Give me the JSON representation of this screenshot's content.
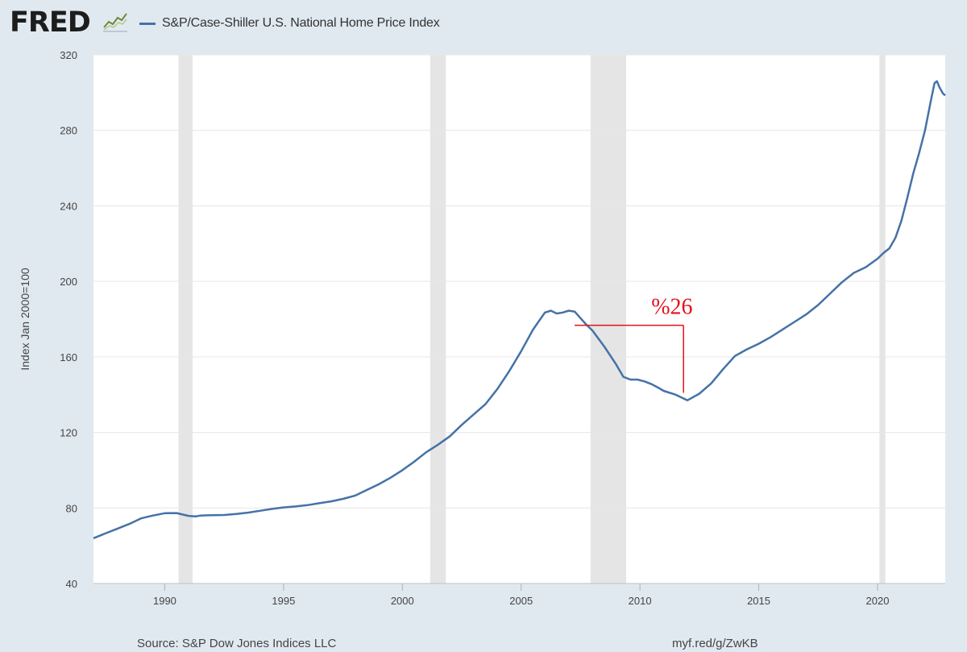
{
  "header": {
    "logo_text": "FRED",
    "legend_label": "S&P/Case-Shiller U.S. National Home Price Index"
  },
  "footer": {
    "source": "Source: S&P Dow Jones Indices LLC",
    "link": "myf.red/g/ZwKB"
  },
  "colors": {
    "background": "#e1e9f0",
    "plot_background": "#ffffff",
    "series": "#4572a7",
    "recession": "#e5e5e5",
    "annotation": "#e3111b"
  },
  "chart_data": {
    "type": "line",
    "title": "S&P/Case-Shiller U.S. National Home Price Index",
    "xlabel": "",
    "ylabel": "Index Jan 2000=100",
    "xlim": [
      1987.0,
      2022.85
    ],
    "ylim": [
      40,
      320
    ],
    "x_ticks": [
      1990,
      1995,
      2000,
      2005,
      2010,
      2015,
      2020
    ],
    "y_ticks": [
      40,
      80,
      120,
      160,
      200,
      240,
      280,
      320
    ],
    "grid": true,
    "recessions": [
      [
        1990.58,
        1991.17
      ],
      [
        2001.17,
        2001.83
      ],
      [
        2007.92,
        2009.42
      ],
      [
        2020.08,
        2020.33
      ]
    ],
    "annotation": {
      "text": "%26",
      "from": {
        "x": 2007.25,
        "y": 184
      },
      "to": {
        "x": 2011.8,
        "y": 141
      }
    },
    "series": [
      {
        "name": "S&P/Case-Shiller U.S. National Home Price Index",
        "x": [
          1987.0,
          1987.5,
          1988.0,
          1988.5,
          1989.0,
          1989.5,
          1990.0,
          1990.5,
          1991.0,
          1991.3,
          1991.5,
          1992.0,
          1992.5,
          1993.0,
          1993.5,
          1994.0,
          1994.5,
          1995.0,
          1995.5,
          1996.0,
          1996.5,
          1997.0,
          1997.5,
          1998.0,
          1998.5,
          1999.0,
          1999.5,
          2000.0,
          2000.5,
          2001.0,
          2001.5,
          2002.0,
          2002.5,
          2003.0,
          2003.5,
          2004.0,
          2004.5,
          2005.0,
          2005.5,
          2006.0,
          2006.25,
          2006.5,
          2006.75,
          2007.0,
          2007.25,
          2007.5,
          2007.75,
          2008.0,
          2008.5,
          2009.0,
          2009.3,
          2009.6,
          2009.9,
          2010.2,
          2010.5,
          2010.8,
          2011.0,
          2011.5,
          2012.0,
          2012.5,
          2013.0,
          2013.5,
          2014.0,
          2014.5,
          2015.0,
          2015.5,
          2016.0,
          2016.5,
          2017.0,
          2017.5,
          2018.0,
          2018.5,
          2019.0,
          2019.5,
          2020.0,
          2020.25,
          2020.5,
          2020.75,
          2021.0,
          2021.25,
          2021.5,
          2021.75,
          2022.0,
          2022.25,
          2022.4,
          2022.5,
          2022.6,
          2022.75,
          2022.85
        ],
        "values": [
          64,
          66.5,
          69,
          71.5,
          74.5,
          76,
          77.2,
          77.3,
          75.8,
          75.5,
          76,
          76.2,
          76.3,
          76.8,
          77.5,
          78.5,
          79.5,
          80.3,
          80.8,
          81.5,
          82.5,
          83.5,
          84.8,
          86.5,
          89.5,
          92.5,
          96,
          100,
          104.5,
          109.5,
          113.5,
          118,
          124,
          129.5,
          135,
          143,
          152.5,
          163,
          174.5,
          183.5,
          184.5,
          183,
          183.5,
          184.5,
          184,
          180.5,
          177,
          174,
          165.5,
          156,
          149.5,
          148,
          148,
          147,
          145.5,
          143.5,
          142,
          140,
          137,
          140.5,
          146,
          153.5,
          160.5,
          164,
          167,
          170.5,
          174.5,
          178.5,
          182.5,
          187.5,
          193.5,
          199.5,
          204.5,
          207.5,
          212,
          215,
          217.5,
          223,
          232,
          244,
          257,
          268,
          280,
          296,
          305,
          306,
          303,
          299.5,
          298.5
        ]
      }
    ]
  }
}
